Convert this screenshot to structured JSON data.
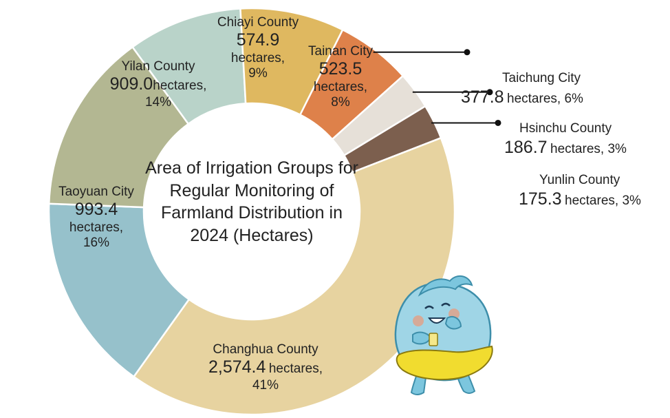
{
  "chart_data": {
    "type": "pie",
    "title": "Area of Irrigation Groups for Regular Monitoring of Farmland Distribution in 2024 (Hectares)",
    "unit": "hectares",
    "slices": [
      {
        "label": "Chiayi County",
        "value": 574.9,
        "value_text": "574.9",
        "percent": "9%",
        "color": "#b9d3c9"
      },
      {
        "label": "Tainan City",
        "value": 523.5,
        "value_text": "523.5",
        "percent": "8%",
        "color": "#dfb860"
      },
      {
        "label": "Taichung City",
        "value": 377.8,
        "value_text": "377.8",
        "percent": "6%",
        "color": "#de814a"
      },
      {
        "label": "Hsinchu County",
        "value": 186.7,
        "value_text": "186.7",
        "percent": "3%",
        "color": "#e6e0d8"
      },
      {
        "label": "Yunlin County",
        "value": 175.3,
        "value_text": "175.3",
        "percent": "3%",
        "color": "#7c5f4e"
      },
      {
        "label": "Changhua County",
        "value": 2574.4,
        "value_text": "2,574.4",
        "percent": "41%",
        "color": "#e7d3a0"
      },
      {
        "label": "Taoyuan City",
        "value": 993.4,
        "value_text": "993.4",
        "percent": "16%",
        "color": "#96c1cb"
      },
      {
        "label": "Yilan County",
        "value": 909.0,
        "value_text": "909.0",
        "percent": "14%",
        "color": "#b3b792"
      }
    ]
  }
}
